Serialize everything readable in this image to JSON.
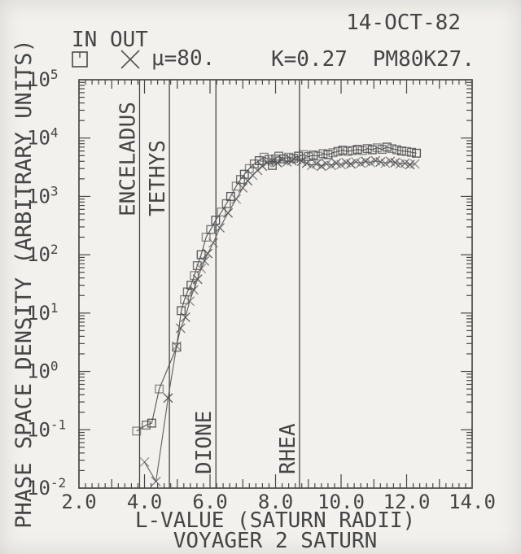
{
  "chart_data": {
    "type": "scatter",
    "title_date": "14-OCT-82",
    "params": {
      "mu": "μ=80.",
      "k": "K=0.27",
      "run_id": "PM80K27."
    },
    "legend": {
      "in": "IN",
      "out": "OUT"
    },
    "xlabel": "L-VALUE (SATURN RADII)",
    "xsublabel": "VOYAGER 2 SATURN",
    "ylabel": "PHASE SPACE DENSITY (ARBITRARY UNITS)",
    "xlim": [
      2.0,
      14.0
    ],
    "x_major_tick_values": [
      2,
      4,
      6,
      8,
      10,
      12,
      14
    ],
    "x_tick_labels": [
      "2.0",
      "4.0",
      "6.0",
      "8.0",
      "10.0",
      "12.0",
      "14.0"
    ],
    "x_minor_step": 0.2,
    "yscale": "log",
    "y_exponent_range": [
      -2,
      5
    ],
    "grid": false,
    "reference_lines": [
      {
        "name": "ENCELADUS",
        "L": 3.85,
        "label_pos": "top"
      },
      {
        "name": "TETHYS",
        "L": 4.76,
        "label_pos": "top"
      },
      {
        "name": "DIONE",
        "L": 6.18,
        "label_pos": "bottom"
      },
      {
        "name": "RHEA",
        "L": 8.73,
        "label_pos": "bottom"
      }
    ],
    "series": [
      {
        "name": "IN",
        "symbol": "square",
        "color": "#4a4a4a",
        "points": [
          [
            3.76,
            0.095
          ],
          [
            4.05,
            0.12
          ],
          [
            4.22,
            0.13
          ],
          [
            4.45,
            0.5
          ],
          [
            4.98,
            2.6
          ],
          [
            5.12,
            11
          ],
          [
            5.22,
            17
          ],
          [
            5.31,
            23
          ],
          [
            5.42,
            30
          ],
          [
            5.52,
            44
          ],
          [
            5.61,
            65
          ],
          [
            5.73,
            100
          ],
          [
            5.88,
            200
          ],
          [
            6.02,
            270
          ],
          [
            6.17,
            390
          ],
          [
            6.35,
            540
          ],
          [
            6.5,
            750
          ],
          [
            6.63,
            1000
          ],
          [
            6.8,
            1500
          ],
          [
            6.93,
            1950
          ],
          [
            7.05,
            2400
          ],
          [
            7.2,
            3000
          ],
          [
            7.35,
            3600
          ],
          [
            7.5,
            4100
          ],
          [
            7.65,
            4700
          ],
          [
            7.8,
            4300
          ],
          [
            7.9,
            3400
          ],
          [
            8.0,
            4400
          ],
          [
            8.1,
            4900
          ],
          [
            8.25,
            4400
          ],
          [
            8.4,
            4700
          ],
          [
            8.55,
            4500
          ],
          [
            8.7,
            4900
          ],
          [
            8.85,
            5200
          ],
          [
            9.0,
            4800
          ],
          [
            9.15,
            5100
          ],
          [
            9.3,
            4900
          ],
          [
            9.45,
            5400
          ],
          [
            9.6,
            5200
          ],
          [
            9.75,
            5600
          ],
          [
            9.9,
            5900
          ],
          [
            10.05,
            6200
          ],
          [
            10.2,
            5900
          ],
          [
            10.35,
            6100
          ],
          [
            10.5,
            6400
          ],
          [
            10.65,
            6100
          ],
          [
            10.8,
            6600
          ],
          [
            10.95,
            6300
          ],
          [
            11.1,
            6800
          ],
          [
            11.25,
            6400
          ],
          [
            11.4,
            7000
          ],
          [
            11.55,
            6600
          ],
          [
            11.7,
            6300
          ],
          [
            11.85,
            6000
          ],
          [
            12.0,
            5900
          ],
          [
            12.15,
            5700
          ],
          [
            12.3,
            5500
          ]
        ]
      },
      {
        "name": "OUT",
        "symbol": "x",
        "color": "#555555",
        "points": [
          [
            4.0,
            0.028
          ],
          [
            4.35,
            0.013
          ],
          [
            4.72,
            0.35
          ],
          [
            4.98,
            2.7
          ],
          [
            5.1,
            5.5
          ],
          [
            5.25,
            8.5
          ],
          [
            5.38,
            16
          ],
          [
            5.5,
            25
          ],
          [
            5.62,
            38
          ],
          [
            5.73,
            58
          ],
          [
            5.83,
            78
          ],
          [
            5.93,
            105
          ],
          [
            6.1,
            160
          ],
          [
            6.3,
            290
          ],
          [
            6.55,
            520
          ],
          [
            6.8,
            900
          ],
          [
            7.0,
            1400
          ],
          [
            7.15,
            1850
          ],
          [
            7.3,
            2300
          ],
          [
            7.45,
            2800
          ],
          [
            7.6,
            3300
          ],
          [
            7.75,
            3800
          ],
          [
            7.9,
            4100
          ],
          [
            8.05,
            3800
          ],
          [
            8.2,
            4200
          ],
          [
            8.35,
            3900
          ],
          [
            8.5,
            4100
          ],
          [
            8.65,
            4300
          ],
          [
            8.8,
            4000
          ],
          [
            8.95,
            3700
          ],
          [
            9.1,
            3400
          ],
          [
            9.25,
            3600
          ],
          [
            9.4,
            3300
          ],
          [
            9.55,
            3600
          ],
          [
            9.7,
            3400
          ],
          [
            9.85,
            3700
          ],
          [
            10.0,
            3500
          ],
          [
            10.15,
            3800
          ],
          [
            10.3,
            3600
          ],
          [
            10.45,
            3900
          ],
          [
            10.6,
            3700
          ],
          [
            10.75,
            4000
          ],
          [
            10.9,
            3800
          ],
          [
            11.05,
            4100
          ],
          [
            11.2,
            3900
          ],
          [
            11.35,
            3700
          ],
          [
            11.5,
            4000
          ],
          [
            11.65,
            3800
          ],
          [
            11.8,
            3600
          ],
          [
            11.95,
            3700
          ],
          [
            12.1,
            3500
          ],
          [
            12.25,
            3600
          ]
        ]
      }
    ],
    "colors": {
      "ink": "#454545",
      "frame": "#3f3f3f",
      "paper": "#f2f1ed"
    }
  }
}
